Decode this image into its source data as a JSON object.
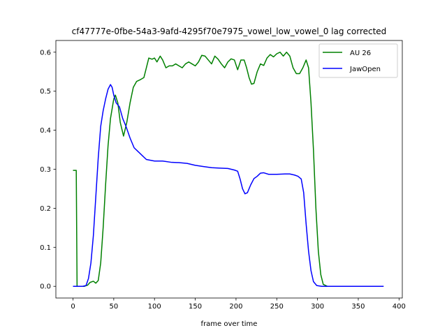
{
  "chart_data": {
    "type": "line",
    "title": "cf47777e-0fbe-54a3-9afd-4295f70e7975_vowel_low_vowel_0  lag corrected",
    "xlabel": "frame over time",
    "ylabel": "",
    "xlim": [
      -21,
      404
    ],
    "ylim": [
      -0.03,
      0.63
    ],
    "xticks": [
      0,
      50,
      100,
      150,
      200,
      250,
      300,
      350,
      400
    ],
    "yticks": [
      0.0,
      0.1,
      0.2,
      0.3,
      0.4,
      0.5,
      0.6
    ],
    "grid": false,
    "legend_position": "top-right",
    "series": [
      {
        "name": "AU 26",
        "color": "#008000",
        "points": [
          [
            0,
            0.297
          ],
          [
            4,
            0.297
          ],
          [
            5,
            0.0
          ],
          [
            14,
            0.0
          ],
          [
            18,
            0.003
          ],
          [
            21,
            0.01
          ],
          [
            25,
            0.013
          ],
          [
            28,
            0.008
          ],
          [
            31,
            0.015
          ],
          [
            34,
            0.06
          ],
          [
            37,
            0.15
          ],
          [
            40,
            0.26
          ],
          [
            43,
            0.36
          ],
          [
            46,
            0.43
          ],
          [
            50,
            0.48
          ],
          [
            52,
            0.49
          ],
          [
            55,
            0.47
          ],
          [
            58,
            0.42
          ],
          [
            62,
            0.385
          ],
          [
            66,
            0.42
          ],
          [
            70,
            0.47
          ],
          [
            74,
            0.51
          ],
          [
            78,
            0.525
          ],
          [
            83,
            0.53
          ],
          [
            87,
            0.535
          ],
          [
            90,
            0.56
          ],
          [
            93,
            0.585
          ],
          [
            97,
            0.582
          ],
          [
            100,
            0.585
          ],
          [
            103,
            0.575
          ],
          [
            107,
            0.59
          ],
          [
            110,
            0.58
          ],
          [
            114,
            0.56
          ],
          [
            118,
            0.565
          ],
          [
            122,
            0.565
          ],
          [
            126,
            0.57
          ],
          [
            130,
            0.565
          ],
          [
            134,
            0.56
          ],
          [
            138,
            0.57
          ],
          [
            142,
            0.575
          ],
          [
            146,
            0.57
          ],
          [
            150,
            0.565
          ],
          [
            154,
            0.575
          ],
          [
            158,
            0.592
          ],
          [
            162,
            0.59
          ],
          [
            166,
            0.58
          ],
          [
            170,
            0.57
          ],
          [
            174,
            0.59
          ],
          [
            178,
            0.582
          ],
          [
            182,
            0.57
          ],
          [
            186,
            0.56
          ],
          [
            190,
            0.575
          ],
          [
            194,
            0.583
          ],
          [
            198,
            0.58
          ],
          [
            202,
            0.555
          ],
          [
            206,
            0.58
          ],
          [
            210,
            0.58
          ],
          [
            213,
            0.56
          ],
          [
            216,
            0.535
          ],
          [
            219,
            0.518
          ],
          [
            222,
            0.52
          ],
          [
            226,
            0.55
          ],
          [
            230,
            0.57
          ],
          [
            234,
            0.566
          ],
          [
            238,
            0.585
          ],
          [
            242,
            0.594
          ],
          [
            246,
            0.588
          ],
          [
            250,
            0.596
          ],
          [
            254,
            0.6
          ],
          [
            258,
            0.59
          ],
          [
            262,
            0.6
          ],
          [
            266,
            0.59
          ],
          [
            270,
            0.56
          ],
          [
            274,
            0.545
          ],
          [
            278,
            0.545
          ],
          [
            282,
            0.56
          ],
          [
            286,
            0.58
          ],
          [
            289,
            0.56
          ],
          [
            292,
            0.47
          ],
          [
            295,
            0.35
          ],
          [
            298,
            0.2
          ],
          [
            301,
            0.09
          ],
          [
            304,
            0.03
          ],
          [
            307,
            0.005
          ],
          [
            312,
            0.0
          ],
          [
            381,
            0.0
          ]
        ]
      },
      {
        "name": "JawOpen",
        "color": "#0000ff",
        "points": [
          [
            0,
            0.0
          ],
          [
            12,
            0.0
          ],
          [
            16,
            0.002
          ],
          [
            19,
            0.02
          ],
          [
            22,
            0.06
          ],
          [
            25,
            0.13
          ],
          [
            28,
            0.23
          ],
          [
            31,
            0.33
          ],
          [
            34,
            0.41
          ],
          [
            37,
            0.45
          ],
          [
            40,
            0.48
          ],
          [
            43,
            0.505
          ],
          [
            46,
            0.517
          ],
          [
            48,
            0.51
          ],
          [
            50,
            0.49
          ],
          [
            53,
            0.47
          ],
          [
            57,
            0.46
          ],
          [
            61,
            0.43
          ],
          [
            65,
            0.41
          ],
          [
            70,
            0.38
          ],
          [
            75,
            0.355
          ],
          [
            80,
            0.345
          ],
          [
            85,
            0.335
          ],
          [
            90,
            0.325
          ],
          [
            100,
            0.321
          ],
          [
            110,
            0.321
          ],
          [
            120,
            0.318
          ],
          [
            130,
            0.317
          ],
          [
            140,
            0.315
          ],
          [
            150,
            0.31
          ],
          [
            160,
            0.307
          ],
          [
            170,
            0.304
          ],
          [
            180,
            0.303
          ],
          [
            190,
            0.302
          ],
          [
            198,
            0.298
          ],
          [
            202,
            0.295
          ],
          [
            205,
            0.275
          ],
          [
            208,
            0.25
          ],
          [
            211,
            0.237
          ],
          [
            214,
            0.24
          ],
          [
            218,
            0.26
          ],
          [
            222,
            0.276
          ],
          [
            226,
            0.282
          ],
          [
            230,
            0.29
          ],
          [
            234,
            0.291
          ],
          [
            240,
            0.287
          ],
          [
            250,
            0.287
          ],
          [
            260,
            0.288
          ],
          [
            266,
            0.288
          ],
          [
            272,
            0.285
          ],
          [
            276,
            0.282
          ],
          [
            280,
            0.275
          ],
          [
            283,
            0.24
          ],
          [
            286,
            0.16
          ],
          [
            289,
            0.09
          ],
          [
            292,
            0.04
          ],
          [
            295,
            0.012
          ],
          [
            299,
            0.002
          ],
          [
            305,
            0.0
          ],
          [
            381,
            0.0
          ]
        ]
      }
    ]
  }
}
